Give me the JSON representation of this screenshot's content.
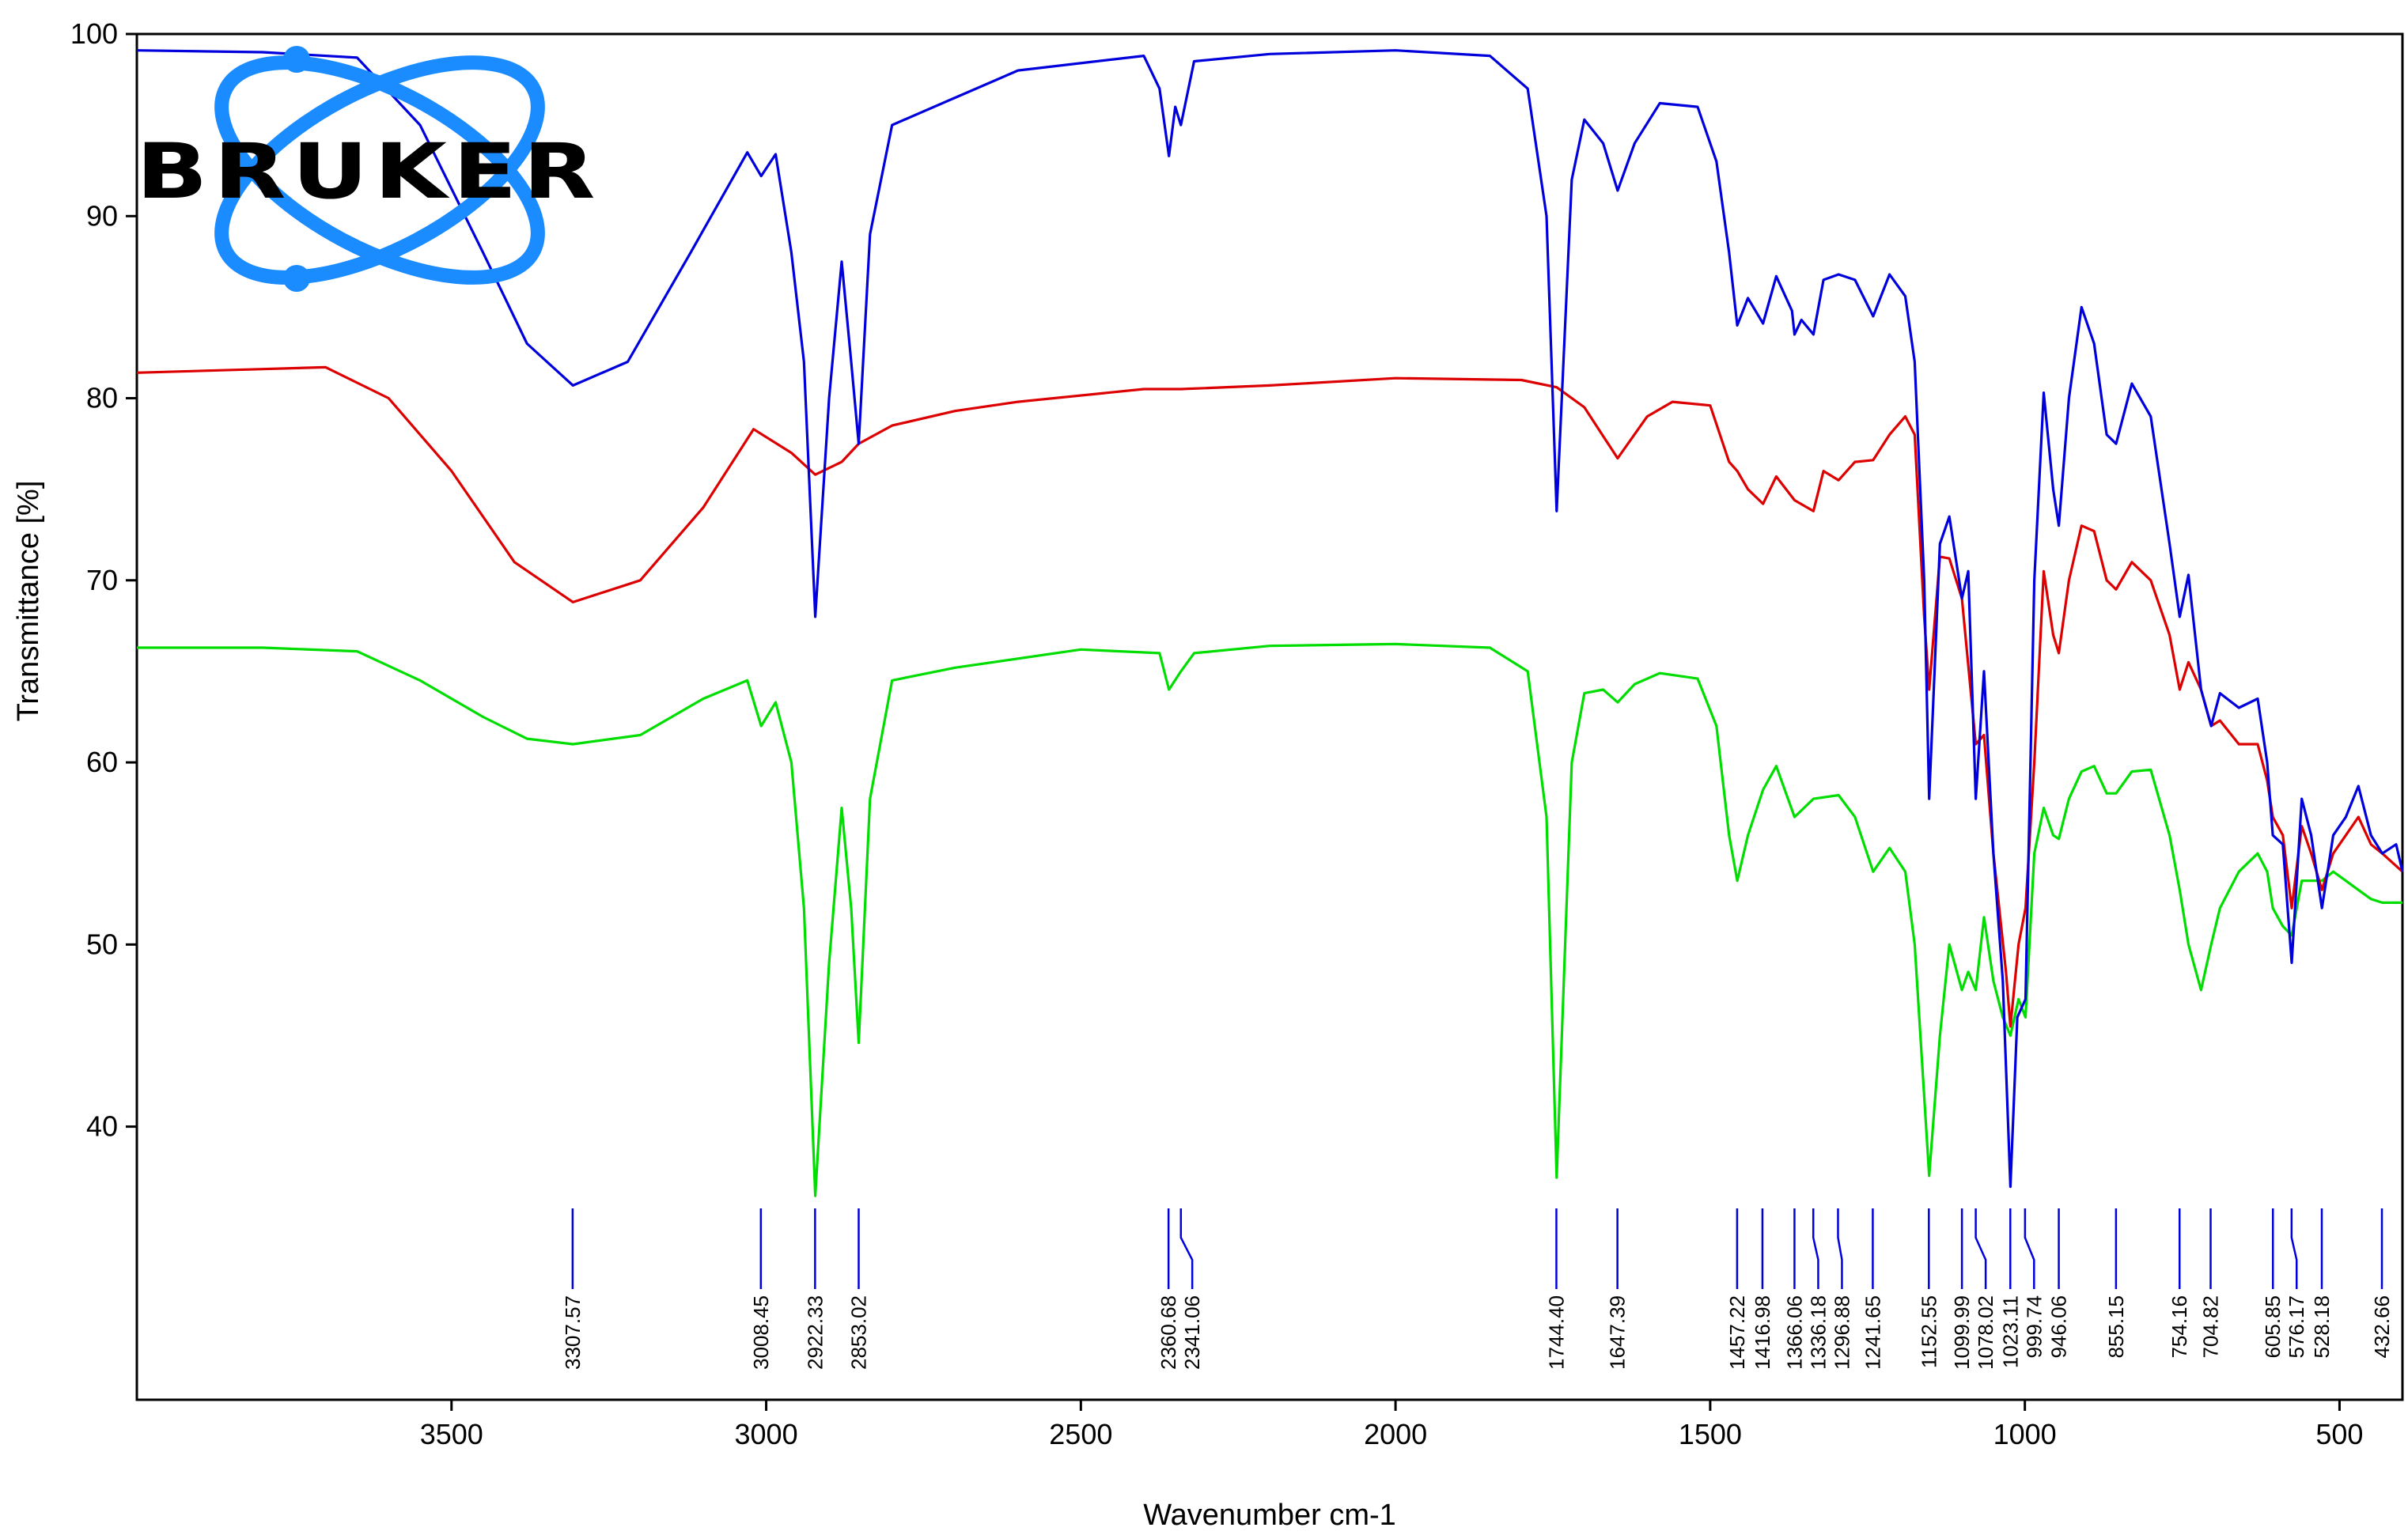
{
  "logo": {
    "text": "BRUKER",
    "color": "#1a8cff"
  },
  "chart_data": {
    "type": "line",
    "xlabel": "Wavenumber cm-1",
    "ylabel": "Transmittance [%]",
    "xlim": [
      4000,
      400
    ],
    "ylim": [
      25,
      100
    ],
    "x_ticks": [
      3500,
      3000,
      2500,
      2000,
      1500,
      1000,
      500
    ],
    "y_ticks": [
      40,
      50,
      60,
      70,
      80,
      90,
      100
    ],
    "grid": false,
    "series": [
      {
        "color": "#0000dd",
        "points": [
          [
            4000,
            99.1
          ],
          [
            3800,
            99.0
          ],
          [
            3650,
            98.7
          ],
          [
            3550,
            95
          ],
          [
            3450,
            88
          ],
          [
            3380,
            83
          ],
          [
            3307,
            80.7
          ],
          [
            3220,
            82
          ],
          [
            3120,
            88
          ],
          [
            3030,
            93.5
          ],
          [
            3008,
            92.2
          ],
          [
            2985,
            93.4
          ],
          [
            2960,
            88
          ],
          [
            2940,
            82
          ],
          [
            2922,
            68
          ],
          [
            2900,
            80
          ],
          [
            2880,
            87.5
          ],
          [
            2865,
            82
          ],
          [
            2853,
            77.5
          ],
          [
            2835,
            89
          ],
          [
            2800,
            95
          ],
          [
            2700,
            96.5
          ],
          [
            2600,
            98
          ],
          [
            2400,
            98.8
          ],
          [
            2375,
            97
          ],
          [
            2360,
            93.3
          ],
          [
            2350,
            96
          ],
          [
            2341,
            95
          ],
          [
            2320,
            98.5
          ],
          [
            2200,
            98.9
          ],
          [
            2000,
            99.1
          ],
          [
            1850,
            98.8
          ],
          [
            1790,
            97
          ],
          [
            1760,
            90
          ],
          [
            1744,
            73.8
          ],
          [
            1720,
            92
          ],
          [
            1700,
            95.3
          ],
          [
            1670,
            94
          ],
          [
            1647,
            91.4
          ],
          [
            1620,
            94
          ],
          [
            1580,
            96.2
          ],
          [
            1520,
            96
          ],
          [
            1490,
            93
          ],
          [
            1470,
            88
          ],
          [
            1457,
            84
          ],
          [
            1440,
            85.5
          ],
          [
            1416,
            84.1
          ],
          [
            1395,
            86.7
          ],
          [
            1370,
            84.8
          ],
          [
            1366,
            83.5
          ],
          [
            1355,
            84.3
          ],
          [
            1336,
            83.5
          ],
          [
            1320,
            86.5
          ],
          [
            1296,
            86.8
          ],
          [
            1270,
            86.5
          ],
          [
            1241,
            84.5
          ],
          [
            1215,
            86.8
          ],
          [
            1190,
            85.6
          ],
          [
            1175,
            82
          ],
          [
            1160,
            70
          ],
          [
            1152,
            58
          ],
          [
            1135,
            72
          ],
          [
            1120,
            73.5
          ],
          [
            1100,
            69
          ],
          [
            1090,
            70.5
          ],
          [
            1078,
            58
          ],
          [
            1065,
            65
          ],
          [
            1050,
            55
          ],
          [
            1035,
            48
          ],
          [
            1023,
            36.7
          ],
          [
            1012,
            46
          ],
          [
            999,
            47
          ],
          [
            985,
            70
          ],
          [
            970,
            80.3
          ],
          [
            955,
            75
          ],
          [
            946,
            73
          ],
          [
            930,
            80
          ],
          [
            910,
            85
          ],
          [
            890,
            83
          ],
          [
            870,
            78
          ],
          [
            855,
            77.5
          ],
          [
            830,
            80.8
          ],
          [
            800,
            79
          ],
          [
            770,
            72
          ],
          [
            754,
            68
          ],
          [
            740,
            70.3
          ],
          [
            720,
            64
          ],
          [
            704,
            62
          ],
          [
            690,
            63.8
          ],
          [
            660,
            63
          ],
          [
            630,
            63.5
          ],
          [
            615,
            60
          ],
          [
            606,
            56
          ],
          [
            590,
            55.5
          ],
          [
            576,
            49
          ],
          [
            560,
            58
          ],
          [
            545,
            56
          ],
          [
            528,
            52
          ],
          [
            510,
            56
          ],
          [
            490,
            57
          ],
          [
            470,
            58.7
          ],
          [
            450,
            56
          ],
          [
            432,
            55
          ],
          [
            410,
            55.5
          ],
          [
            400,
            54
          ]
        ]
      },
      {
        "color": "#dd0000",
        "points": [
          [
            4000,
            81.4
          ],
          [
            3800,
            81.6
          ],
          [
            3700,
            81.7
          ],
          [
            3600,
            80
          ],
          [
            3500,
            76
          ],
          [
            3400,
            71
          ],
          [
            3307,
            68.8
          ],
          [
            3200,
            70
          ],
          [
            3100,
            74
          ],
          [
            3020,
            78.3
          ],
          [
            2960,
            77
          ],
          [
            2922,
            75.8
          ],
          [
            2880,
            76.5
          ],
          [
            2853,
            77.5
          ],
          [
            2800,
            78.5
          ],
          [
            2700,
            79.3
          ],
          [
            2600,
            79.8
          ],
          [
            2400,
            80.5
          ],
          [
            2341,
            80.5
          ],
          [
            2200,
            80.7
          ],
          [
            2000,
            81.1
          ],
          [
            1800,
            81
          ],
          [
            1744,
            80.6
          ],
          [
            1700,
            79.5
          ],
          [
            1647,
            76.7
          ],
          [
            1600,
            79
          ],
          [
            1560,
            79.8
          ],
          [
            1500,
            79.6
          ],
          [
            1470,
            76.5
          ],
          [
            1457,
            76
          ],
          [
            1440,
            75
          ],
          [
            1416,
            74.2
          ],
          [
            1395,
            75.7
          ],
          [
            1366,
            74.4
          ],
          [
            1336,
            73.8
          ],
          [
            1320,
            76
          ],
          [
            1296,
            75.5
          ],
          [
            1270,
            76.5
          ],
          [
            1241,
            76.6
          ],
          [
            1215,
            78
          ],
          [
            1190,
            79
          ],
          [
            1175,
            78
          ],
          [
            1160,
            68
          ],
          [
            1152,
            64
          ],
          [
            1135,
            71.3
          ],
          [
            1120,
            71.2
          ],
          [
            1100,
            69
          ],
          [
            1078,
            61
          ],
          [
            1065,
            61.5
          ],
          [
            1050,
            55
          ],
          [
            1030,
            48.5
          ],
          [
            1023,
            45.5
          ],
          [
            1010,
            50
          ],
          [
            999,
            52
          ],
          [
            985,
            60
          ],
          [
            970,
            70.5
          ],
          [
            955,
            67
          ],
          [
            946,
            66
          ],
          [
            930,
            70
          ],
          [
            910,
            73
          ],
          [
            890,
            72.7
          ],
          [
            870,
            70
          ],
          [
            855,
            69.5
          ],
          [
            830,
            71
          ],
          [
            800,
            70
          ],
          [
            770,
            67
          ],
          [
            754,
            64
          ],
          [
            740,
            65.5
          ],
          [
            720,
            64
          ],
          [
            704,
            62
          ],
          [
            690,
            62.3
          ],
          [
            660,
            61
          ],
          [
            630,
            61
          ],
          [
            615,
            59
          ],
          [
            606,
            57
          ],
          [
            590,
            56
          ],
          [
            576,
            52
          ],
          [
            560,
            56.5
          ],
          [
            545,
            55
          ],
          [
            528,
            53
          ],
          [
            510,
            55
          ],
          [
            490,
            56
          ],
          [
            470,
            57
          ],
          [
            450,
            55.5
          ],
          [
            432,
            55
          ],
          [
            400,
            54
          ]
        ]
      },
      {
        "color": "#00dd00",
        "points": [
          [
            4000,
            66.3
          ],
          [
            3800,
            66.3
          ],
          [
            3650,
            66.1
          ],
          [
            3550,
            64.5
          ],
          [
            3450,
            62.5
          ],
          [
            3380,
            61.3
          ],
          [
            3307,
            61
          ],
          [
            3200,
            61.5
          ],
          [
            3100,
            63.5
          ],
          [
            3030,
            64.5
          ],
          [
            3008,
            62
          ],
          [
            2985,
            63.3
          ],
          [
            2960,
            60
          ],
          [
            2940,
            52
          ],
          [
            2922,
            36.2
          ],
          [
            2900,
            49
          ],
          [
            2880,
            57.5
          ],
          [
            2865,
            52
          ],
          [
            2853,
            44.6
          ],
          [
            2835,
            58
          ],
          [
            2800,
            64.5
          ],
          [
            2700,
            65.2
          ],
          [
            2500,
            66.2
          ],
          [
            2375,
            66
          ],
          [
            2360,
            64
          ],
          [
            2341,
            65
          ],
          [
            2320,
            66
          ],
          [
            2200,
            66.4
          ],
          [
            2000,
            66.5
          ],
          [
            1850,
            66.3
          ],
          [
            1790,
            65
          ],
          [
            1760,
            57
          ],
          [
            1744,
            37.2
          ],
          [
            1720,
            60
          ],
          [
            1700,
            63.8
          ],
          [
            1670,
            64
          ],
          [
            1647,
            63.3
          ],
          [
            1620,
            64.3
          ],
          [
            1580,
            64.9
          ],
          [
            1520,
            64.6
          ],
          [
            1490,
            62
          ],
          [
            1470,
            56
          ],
          [
            1457,
            53.5
          ],
          [
            1440,
            56
          ],
          [
            1416,
            58.5
          ],
          [
            1395,
            59.8
          ],
          [
            1366,
            57
          ],
          [
            1336,
            58
          ],
          [
            1296,
            58.2
          ],
          [
            1270,
            57
          ],
          [
            1241,
            54
          ],
          [
            1215,
            55.3
          ],
          [
            1190,
            54
          ],
          [
            1175,
            50
          ],
          [
            1152,
            37.3
          ],
          [
            1135,
            45
          ],
          [
            1120,
            50
          ],
          [
            1100,
            47.5
          ],
          [
            1090,
            48.5
          ],
          [
            1078,
            47.5
          ],
          [
            1065,
            51.5
          ],
          [
            1050,
            48
          ],
          [
            1035,
            46
          ],
          [
            1023,
            45
          ],
          [
            1010,
            47
          ],
          [
            999,
            46
          ],
          [
            985,
            55
          ],
          [
            970,
            57.5
          ],
          [
            955,
            56
          ],
          [
            946,
            55.8
          ],
          [
            930,
            58
          ],
          [
            910,
            59.5
          ],
          [
            890,
            59.8
          ],
          [
            870,
            58.3
          ],
          [
            855,
            58.3
          ],
          [
            830,
            59.5
          ],
          [
            800,
            59.6
          ],
          [
            770,
            56
          ],
          [
            754,
            53
          ],
          [
            740,
            50
          ],
          [
            720,
            47.5
          ],
          [
            704,
            50
          ],
          [
            690,
            52
          ],
          [
            660,
            54
          ],
          [
            630,
            55
          ],
          [
            615,
            54
          ],
          [
            606,
            52
          ],
          [
            590,
            51
          ],
          [
            576,
            50.5
          ],
          [
            560,
            53.5
          ],
          [
            545,
            53.5
          ],
          [
            528,
            53.5
          ],
          [
            510,
            54
          ],
          [
            490,
            53.5
          ],
          [
            470,
            53
          ],
          [
            450,
            52.5
          ],
          [
            432,
            52.3
          ],
          [
            400,
            52.3
          ]
        ]
      }
    ],
    "peak_labels": [
      "3307.57",
      "3008.45",
      "2922.33",
      "2853.02",
      "2360.68",
      "2341.06",
      "1744.40",
      "1647.39",
      "1457.22",
      "1416.98",
      "1366.06",
      "1336.18",
      "1296.88",
      "1241.65",
      "1152.55",
      "1099.99",
      "1078.02",
      "1023.11",
      "999.74",
      "946.06",
      "855.15",
      "754.16",
      "704.82",
      "605.85",
      "576.17",
      "528.18",
      "432.66"
    ]
  }
}
